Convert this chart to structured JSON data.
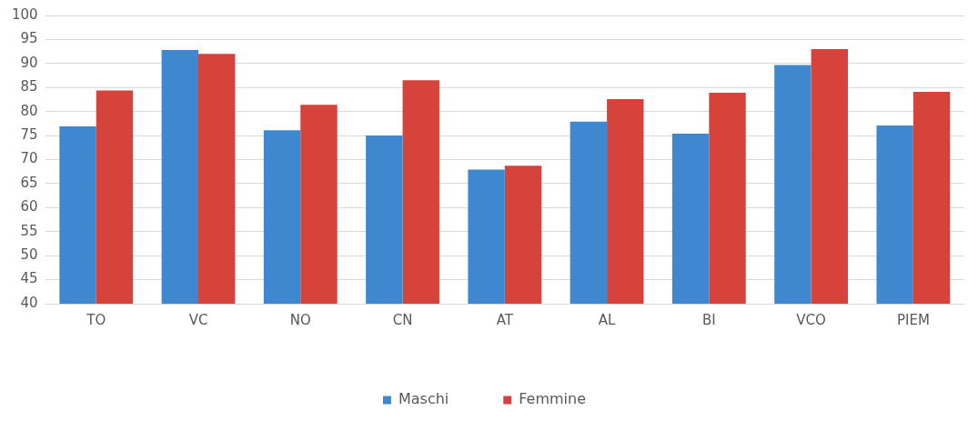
{
  "chart_data": {
    "type": "bar",
    "categories": [
      "TO",
      "VC",
      "NO",
      "CN",
      "AT",
      "AL",
      "BI",
      "VCO",
      "PIEM"
    ],
    "series": [
      {
        "name": "Maschi",
        "color": "#3f88d0",
        "values": [
          76.9,
          92.8,
          76.1,
          75.0,
          67.9,
          77.9,
          75.4,
          89.7,
          77.1
        ]
      },
      {
        "name": "Femmine",
        "color": "#d6433b",
        "values": [
          84.4,
          92.0,
          81.4,
          86.5,
          68.7,
          82.6,
          83.9,
          93.0,
          84.1
        ]
      }
    ],
    "ylim": [
      40,
      100
    ],
    "yticks": [
      40,
      45,
      50,
      55,
      60,
      65,
      70,
      75,
      80,
      85,
      90,
      95,
      100
    ],
    "grid": "y",
    "legend": "bottom"
  }
}
